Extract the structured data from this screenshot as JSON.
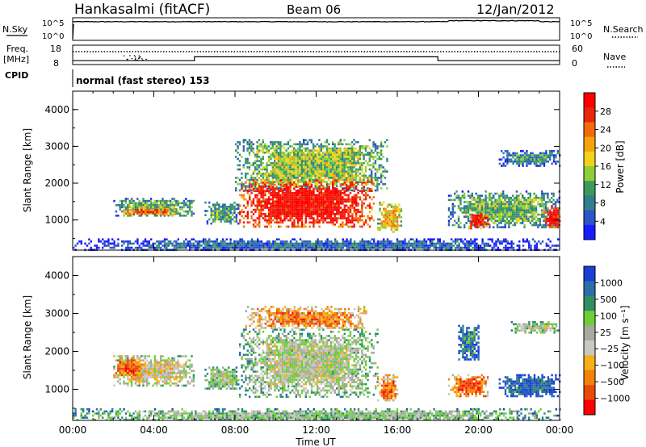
{
  "header": {
    "station": "Hankasalmi (fitACF)",
    "beam": "Beam 06",
    "date": "12/Jan/2012"
  },
  "panels": {
    "nsky": {
      "left_label": "N.Sky",
      "right_label": "N.Search",
      "ytick_top": "10^5",
      "ytick_bottom": "10^0",
      "ytick_top_right": "10^5",
      "ytick_bottom_right": "10^0"
    },
    "freq": {
      "left_label_1": "Freq.",
      "left_label_2": "[MHz]",
      "cpid_label": "CPID",
      "right_label": "Nave",
      "ytick_top": "18",
      "ytick_bottom": "8",
      "ytick_top_right": "60",
      "ytick_bottom_right": "0"
    },
    "cpid_text": "normal (fast stereo) 153",
    "power": {
      "ylabel": "Slant Range [km]",
      "colorbar_label": "Power [dB]"
    },
    "velocity": {
      "ylabel": "Slant Range [km]",
      "colorbar_label": "Velocity [m s⁻¹]"
    },
    "xlabel": "Time UT"
  },
  "colors": {
    "power_scale": [
      "#1a1aff",
      "#2b55c8",
      "#2f7f8f",
      "#3d9a5c",
      "#8dcf3a",
      "#f2d21a",
      "#f5a20e",
      "#f36a0c",
      "#e8260a",
      "#ff0000"
    ],
    "velocity_scale": [
      "#1a3fd6",
      "#2c6fa8",
      "#2f8f62",
      "#6ccf3a",
      "#a9a9a0",
      "#c8c8c0",
      "#f5b017",
      "#f2820c",
      "#e84a0c",
      "#ff0000"
    ]
  },
  "chart_data": [
    {
      "type": "line",
      "title": "N.Sky / N.Search",
      "x": [
        "00:00",
        "04:00",
        "08:00",
        "12:00",
        "16:00",
        "20:00",
        "00:00"
      ],
      "ylim": [
        1,
        100000
      ],
      "yscale": "log",
      "yticks": [
        "10^0",
        "10^5"
      ]
    },
    {
      "type": "line",
      "title": "Freq. [MHz] / Nave",
      "series": [
        {
          "name": "Freq.",
          "x": [
            0,
            6,
            6,
            18,
            18,
            24
          ],
          "values": [
            10,
            10,
            12,
            12,
            10,
            10
          ]
        },
        {
          "name": "Nave",
          "x": [
            0,
            24
          ],
          "values": [
            40,
            40
          ]
        }
      ],
      "ylim": [
        8,
        18
      ],
      "yticks": [
        "8",
        "18"
      ],
      "y2lim": [
        0,
        60
      ],
      "y2ticks": [
        "0",
        "60"
      ]
    },
    {
      "type": "heatmap",
      "title": "Power",
      "x": [
        "00:00",
        "04:00",
        "08:00",
        "12:00",
        "16:00",
        "20:00",
        "00:00"
      ],
      "xlim": [
        0,
        24
      ],
      "ylabel": "Slant Range [km]",
      "yticks": [
        "1000",
        "2000",
        "3000",
        "4000"
      ],
      "ylim": [
        180,
        4500
      ],
      "colorbar": {
        "label": "Power [dB]",
        "ticks": [
          "4",
          "8",
          "12",
          "16",
          "20",
          "24",
          "28"
        ],
        "range": [
          0,
          30
        ]
      },
      "blobs": [
        {
          "t": [
            2.0,
            6.0
          ],
          "r": [
            1100,
            1600
          ],
          "level": 0.4
        },
        {
          "t": [
            2.3,
            5.0
          ],
          "r": [
            1150,
            1350
          ],
          "level": 0.8
        },
        {
          "t": [
            6.5,
            8.2
          ],
          "r": [
            900,
            1500
          ],
          "level": 0.35
        },
        {
          "t": [
            8.0,
            15.5
          ],
          "r": [
            1800,
            3200
          ],
          "level": 0.45
        },
        {
          "t": [
            8.2,
            14.8
          ],
          "r": [
            800,
            2100
          ],
          "level": 0.95
        },
        {
          "t": [
            15.0,
            16.2
          ],
          "r": [
            700,
            1500
          ],
          "level": 0.6
        },
        {
          "t": [
            18.5,
            24.0
          ],
          "r": [
            800,
            1800
          ],
          "level": 0.4
        },
        {
          "t": [
            19.5,
            20.5
          ],
          "r": [
            800,
            1200
          ],
          "level": 0.9
        },
        {
          "t": [
            23.2,
            24.0
          ],
          "r": [
            800,
            1400
          ],
          "level": 0.95
        },
        {
          "t": [
            21.0,
            24.0
          ],
          "r": [
            2500,
            2900
          ],
          "level": 0.3
        },
        {
          "t": [
            0.0,
            24.0
          ],
          "r": [
            180,
            500
          ],
          "level": 0.2
        }
      ]
    },
    {
      "type": "heatmap",
      "title": "Velocity",
      "x": [
        "00:00",
        "04:00",
        "08:00",
        "12:00",
        "16:00",
        "20:00",
        "00:00"
      ],
      "xlim": [
        0,
        24
      ],
      "ylabel": "Slant Range [km]",
      "yticks": [
        "1000",
        "2000",
        "3000",
        "4000"
      ],
      "ylim": [
        180,
        4500
      ],
      "colorbar": {
        "label": "Velocity [m s⁻¹]",
        "ticks": [
          "1000",
          "500",
          "100",
          "25",
          "−25",
          "−100",
          "−500",
          "−1000"
        ],
        "range": [
          -1000,
          1000
        ]
      },
      "blobs": [
        {
          "t": [
            2.0,
            6.0
          ],
          "r": [
            1100,
            1900
          ],
          "level": 0.55
        },
        {
          "t": [
            2.0,
            3.5
          ],
          "r": [
            1300,
            1900
          ],
          "level": 0.8
        },
        {
          "t": [
            6.5,
            8.2
          ],
          "r": [
            1000,
            1600
          ],
          "level": 0.45
        },
        {
          "t": [
            8.2,
            15.0
          ],
          "r": [
            800,
            2600
          ],
          "level": 0.47
        },
        {
          "t": [
            8.5,
            14.5
          ],
          "r": [
            2600,
            3200
          ],
          "level": 0.75
        },
        {
          "t": [
            15.0,
            16.0
          ],
          "r": [
            700,
            1400
          ],
          "level": 0.78
        },
        {
          "t": [
            18.5,
            20.5
          ],
          "r": [
            800,
            1400
          ],
          "level": 0.82
        },
        {
          "t": [
            19.0,
            20.0
          ],
          "r": [
            1800,
            2700
          ],
          "level": 0.2
        },
        {
          "t": [
            21.0,
            24.0
          ],
          "r": [
            800,
            1400
          ],
          "level": 0.15
        },
        {
          "t": [
            21.5,
            24.0
          ],
          "r": [
            2500,
            2800
          ],
          "level": 0.45
        },
        {
          "t": [
            0.0,
            24.0
          ],
          "r": [
            180,
            500
          ],
          "level": 0.4
        }
      ]
    }
  ]
}
